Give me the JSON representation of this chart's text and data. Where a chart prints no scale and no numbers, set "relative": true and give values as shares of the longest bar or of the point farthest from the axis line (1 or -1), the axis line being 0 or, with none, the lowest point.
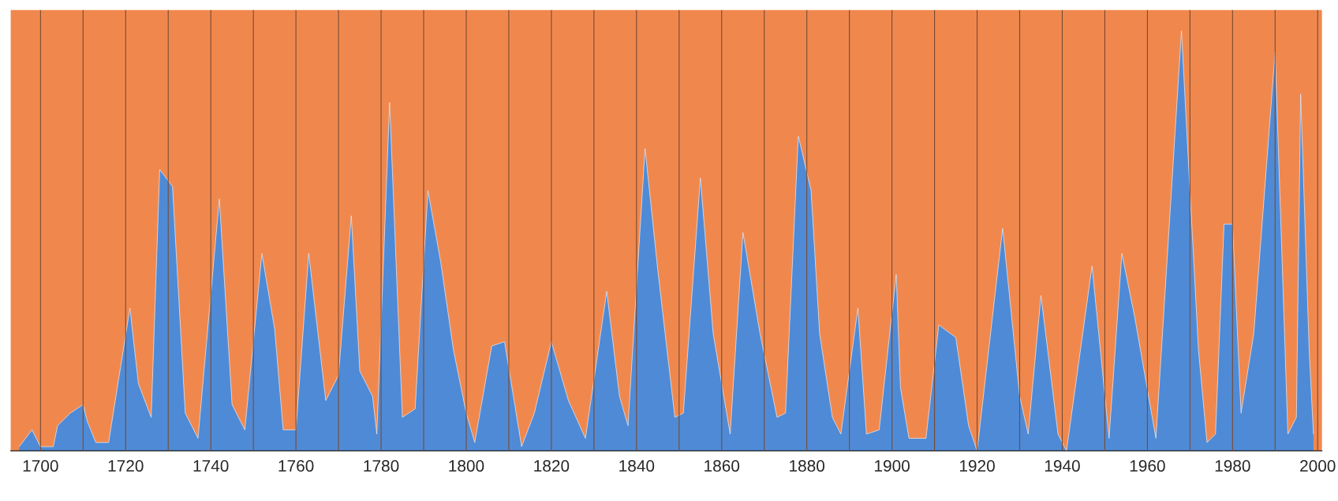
{
  "chart_data": {
    "type": "area",
    "relative": true,
    "grid": "x",
    "x": [
      1695,
      1698,
      1700,
      1703,
      1704,
      1707,
      1710,
      1711,
      1713,
      1716,
      1721,
      1723,
      1726,
      1728,
      1731,
      1734,
      1737,
      1742,
      1745,
      1748,
      1752,
      1755,
      1757,
      1760,
      1763,
      1767,
      1770,
      1773,
      1775,
      1778,
      1779,
      1782,
      1785,
      1788,
      1791,
      1794,
      1797,
      1800,
      1802,
      1806,
      1809,
      1813,
      1816,
      1820,
      1824,
      1828,
      1833,
      1836,
      1838,
      1842,
      1845,
      1849,
      1851,
      1855,
      1858,
      1862,
      1865,
      1869,
      1873,
      1875,
      1878,
      1881,
      1883,
      1886,
      1888,
      1892,
      1894,
      1897,
      1901,
      1902,
      1904,
      1908,
      1911,
      1915,
      1918,
      1920,
      1926,
      1930,
      1932,
      1935,
      1939,
      1941,
      1947,
      1951,
      1954,
      1957,
      1962,
      1968,
      1972,
      1974,
      1976,
      1978,
      1980,
      1982,
      1985,
      1990,
      1993,
      1995,
      1996,
      1998,
      1999
    ],
    "series": [
      {
        "color": "#4f8ad6",
        "values": [
          0.01,
          0.05,
          0.01,
          0.01,
          0.06,
          0.09,
          0.11,
          0.07,
          0.02,
          0.02,
          0.34,
          0.16,
          0.08,
          0.67,
          0.63,
          0.09,
          0.03,
          0.6,
          0.11,
          0.05,
          0.47,
          0.29,
          0.05,
          0.05,
          0.47,
          0.12,
          0.18,
          0.56,
          0.19,
          0.13,
          0.04,
          0.83,
          0.08,
          0.1,
          0.62,
          0.45,
          0.24,
          0.09,
          0.02,
          0.25,
          0.26,
          0.01,
          0.09,
          0.26,
          0.12,
          0.03,
          0.38,
          0.13,
          0.06,
          0.72,
          0.43,
          0.08,
          0.09,
          0.65,
          0.28,
          0.04,
          0.52,
          0.28,
          0.08,
          0.09,
          0.75,
          0.62,
          0.28,
          0.08,
          0.04,
          0.34,
          0.04,
          0.05,
          0.42,
          0.15,
          0.03,
          0.03,
          0.3,
          0.27,
          0.06,
          0,
          0.53,
          0.13,
          0.04,
          0.37,
          0.04,
          0,
          0.44,
          0.03,
          0.47,
          0.32,
          0.03,
          1,
          0.24,
          0.02,
          0.04,
          0.54,
          0.54,
          0.09,
          0.28,
          0.95,
          0.04,
          0.08,
          0.85,
          0.24,
          0.04
        ]
      }
    ],
    "xlim": [
      1693,
      2001
    ],
    "xticks": [
      1700,
      {
        "value": 1710,
        "label": null
      },
      1720,
      {
        "value": 1730,
        "label": null
      },
      1740,
      {
        "value": 1750,
        "label": null
      },
      1760,
      {
        "value": 1770,
        "label": null
      },
      1780,
      {
        "value": 1790,
        "label": null
      },
      1800,
      {
        "value": 1810,
        "label": null
      },
      1820,
      {
        "value": 1830,
        "label": null
      },
      1840,
      {
        "value": 1850,
        "label": null
      },
      1860,
      {
        "value": 1870,
        "label": null
      },
      1880,
      {
        "value": 1890,
        "label": null
      },
      1900,
      {
        "value": 1910,
        "label": null
      },
      1920,
      {
        "value": 1930,
        "label": null
      },
      1940,
      {
        "value": 1950,
        "label": null
      },
      1960,
      {
        "value": 1970,
        "label": null
      },
      1980,
      {
        "value": 1990,
        "label": null
      },
      2000
    ]
  }
}
